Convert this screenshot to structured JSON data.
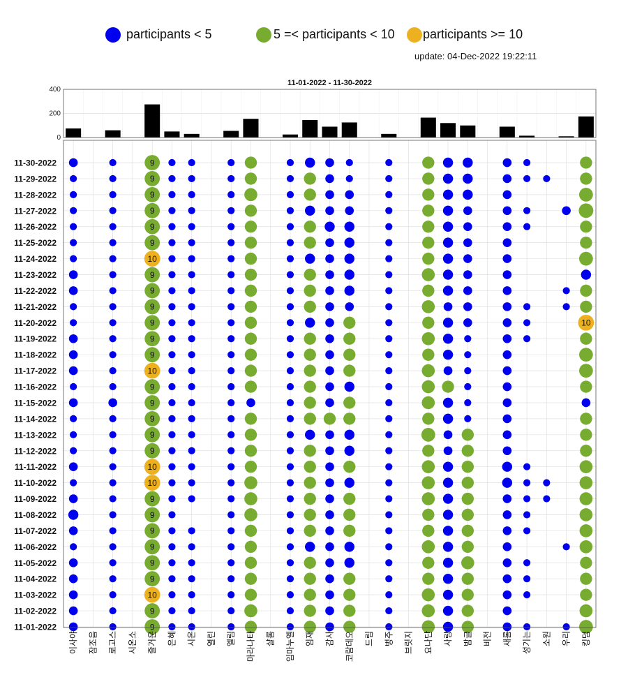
{
  "legend": {
    "items": [
      {
        "label": "participants < 5",
        "color": "#0000ee"
      },
      {
        "label": "5 =< participants < 10",
        "color": "#77ac30"
      },
      {
        "label": "participants >= 10",
        "color": "#edb120"
      }
    ],
    "update": "update: 04-Dec-2022 19:22:11"
  },
  "chart_data": [
    {
      "type": "bar",
      "title": "11-01-2022  - 11-30-2022",
      "ylim": [
        0,
        400
      ],
      "yticks": [
        0,
        200,
        400
      ],
      "categories": [
        "이사야",
        "잠조음",
        "로고스",
        "시온소",
        "즐거운",
        "은혜",
        "시온",
        "열린",
        "엘림",
        "마라나타",
        "샬롬",
        "임마누엘",
        "임재",
        "감사",
        "코람데오",
        "드림",
        "벙주",
        "브릿지",
        "요나단",
        "사랑",
        "밤글",
        "비전",
        "새롬",
        "성기는",
        "소원",
        "우리",
        "킹덤"
      ],
      "values": [
        75,
        0,
        60,
        0,
        275,
        50,
        30,
        0,
        55,
        155,
        0,
        25,
        145,
        90,
        125,
        0,
        30,
        0,
        165,
        120,
        100,
        0,
        90,
        15,
        0,
        10,
        175
      ],
      "color": "#000000"
    },
    {
      "type": "scatter",
      "dates": [
        "11-30-2022",
        "11-29-2022",
        "11-28-2022",
        "11-27-2022",
        "11-26-2022",
        "11-25-2022",
        "11-24-2022",
        "11-23-2022",
        "11-22-2022",
        "11-21-2022",
        "11-20-2022",
        "11-19-2022",
        "11-18-2022",
        "11-17-2022",
        "11-16-2022",
        "11-15-2022",
        "11-14-2022",
        "11-13-2022",
        "11-12-2022",
        "11-11-2022",
        "11-10-2022",
        "11-09-2022",
        "11-08-2022",
        "11-07-2022",
        "11-06-2022",
        "11-05-2022",
        "11-04-2022",
        "11-03-2022",
        "11-02-2022",
        "11-01-2022"
      ],
      "thresholds": {
        "low": 5,
        "high": 10
      },
      "colors": {
        "low": "#0000ee",
        "mid": "#77ac30",
        "high": "#edb120"
      },
      "values": {
        "이사야": [
          2,
          1,
          1,
          1,
          1,
          1,
          1,
          2,
          2,
          1,
          1,
          2,
          2,
          2,
          1,
          2,
          1,
          1,
          1,
          2,
          1,
          2,
          3,
          2,
          1,
          2,
          2,
          2,
          2,
          2
        ],
        "잠조음": [
          0,
          0,
          0,
          0,
          0,
          0,
          0,
          0,
          0,
          0,
          0,
          0,
          0,
          0,
          0,
          0,
          0,
          0,
          0,
          0,
          0,
          0,
          0,
          0,
          0,
          0,
          0,
          0,
          0,
          0
        ],
        "로고스": [
          1,
          1,
          1,
          1,
          1,
          1,
          1,
          1,
          1,
          1,
          1,
          1,
          1,
          1,
          1,
          2,
          1,
          1,
          1,
          1,
          1,
          1,
          1,
          1,
          1,
          1,
          1,
          1,
          1,
          1
        ],
        "시온소": [
          0,
          0,
          0,
          0,
          0,
          0,
          0,
          0,
          0,
          0,
          0,
          0,
          0,
          0,
          0,
          0,
          0,
          0,
          0,
          0,
          0,
          0,
          0,
          0,
          0,
          0,
          0,
          0,
          0,
          0
        ],
        "즐거운": [
          9,
          9,
          9,
          9,
          9,
          9,
          10,
          9,
          9,
          9,
          9,
          9,
          9,
          10,
          9,
          9,
          9,
          9,
          9,
          10,
          10,
          9,
          9,
          9,
          9,
          9,
          9,
          10,
          9,
          9
        ],
        "은혜": [
          1,
          1,
          1,
          1,
          1,
          1,
          1,
          1,
          1,
          1,
          1,
          1,
          1,
          1,
          1,
          1,
          1,
          1,
          1,
          1,
          1,
          1,
          1,
          1,
          1,
          1,
          1,
          1,
          1,
          1
        ],
        "시온": [
          1,
          1,
          1,
          1,
          1,
          1,
          1,
          1,
          1,
          1,
          1,
          1,
          1,
          1,
          1,
          1,
          1,
          1,
          1,
          1,
          1,
          1,
          0,
          1,
          1,
          1,
          1,
          1,
          1,
          1
        ],
        "열린": [
          0,
          0,
          0,
          0,
          0,
          0,
          0,
          0,
          0,
          0,
          0,
          0,
          0,
          0,
          0,
          0,
          0,
          0,
          0,
          0,
          0,
          0,
          0,
          0,
          0,
          0,
          0,
          0,
          0,
          0
        ],
        "엘림": [
          1,
          1,
          1,
          1,
          1,
          1,
          1,
          1,
          1,
          1,
          1,
          1,
          1,
          1,
          1,
          1,
          1,
          1,
          1,
          1,
          1,
          1,
          1,
          1,
          1,
          1,
          1,
          1,
          1,
          1
        ],
        "마라나타": [
          5,
          5,
          6,
          5,
          5,
          5,
          5,
          5,
          5,
          5,
          5,
          5,
          5,
          5,
          5,
          2,
          5,
          5,
          5,
          5,
          6,
          6,
          6,
          5,
          5,
          5,
          5,
          5,
          6,
          5
        ],
        "샬롬": [
          0,
          0,
          0,
          0,
          0,
          0,
          0,
          0,
          0,
          0,
          0,
          0,
          0,
          0,
          0,
          0,
          0,
          0,
          0,
          0,
          0,
          0,
          0,
          0,
          0,
          0,
          0,
          0,
          0,
          0
        ],
        "임마누엘": [
          1,
          1,
          1,
          1,
          1,
          1,
          1,
          1,
          1,
          1,
          1,
          1,
          1,
          1,
          1,
          1,
          1,
          1,
          1,
          1,
          1,
          1,
          1,
          1,
          1,
          1,
          1,
          1,
          1,
          1
        ],
        "임재": [
          3,
          5,
          5,
          3,
          5,
          5,
          3,
          5,
          5,
          5,
          3,
          5,
          5,
          5,
          5,
          5,
          5,
          3,
          5,
          5,
          5,
          5,
          5,
          5,
          3,
          5,
          5,
          5,
          5,
          5
        ],
        "감사": [
          2,
          2,
          2,
          2,
          3,
          2,
          2,
          2,
          2,
          2,
          2,
          2,
          2,
          2,
          2,
          2,
          5,
          2,
          2,
          2,
          2,
          2,
          2,
          2,
          2,
          2,
          2,
          2,
          2,
          2
        ],
        "코람데오": [
          1,
          1,
          2,
          2,
          3,
          3,
          3,
          3,
          3,
          2,
          5,
          5,
          5,
          5,
          3,
          5,
          5,
          3,
          3,
          5,
          3,
          5,
          5,
          5,
          3,
          3,
          5,
          5,
          5,
          5
        ],
        "드림": [
          0,
          0,
          0,
          0,
          0,
          0,
          0,
          0,
          0,
          0,
          0,
          0,
          0,
          0,
          0,
          0,
          0,
          0,
          0,
          0,
          0,
          0,
          0,
          0,
          0,
          0,
          0,
          0,
          0,
          0
        ],
        "벙주": [
          1,
          1,
          1,
          1,
          1,
          1,
          1,
          1,
          1,
          1,
          1,
          1,
          1,
          1,
          1,
          1,
          1,
          1,
          1,
          1,
          1,
          1,
          1,
          1,
          1,
          1,
          1,
          1,
          1,
          1
        ],
        "브릿지": [
          0,
          0,
          0,
          0,
          0,
          0,
          0,
          0,
          0,
          0,
          0,
          0,
          0,
          0,
          0,
          0,
          0,
          0,
          0,
          0,
          0,
          0,
          0,
          0,
          0,
          0,
          0,
          0,
          0,
          0
        ],
        "요나단": [
          5,
          5,
          5,
          5,
          5,
          5,
          5,
          6,
          5,
          6,
          5,
          6,
          5,
          6,
          6,
          6,
          5,
          7,
          5,
          6,
          6,
          6,
          5,
          5,
          6,
          5,
          5,
          6,
          6,
          6
        ],
        "사랑": [
          3,
          3,
          3,
          3,
          3,
          3,
          3,
          3,
          3,
          2,
          3,
          3,
          3,
          2,
          5,
          3,
          3,
          2,
          2,
          3,
          3,
          3,
          3,
          3,
          3,
          3,
          3,
          3,
          3,
          3
        ],
        "밤글": [
          3,
          3,
          3,
          2,
          2,
          2,
          2,
          2,
          2,
          2,
          2,
          1,
          1,
          1,
          1,
          1,
          1,
          5,
          5,
          5,
          5,
          5,
          5,
          5,
          5,
          6,
          5,
          5,
          5,
          5
        ],
        "비전": [
          0,
          0,
          0,
          0,
          0,
          0,
          0,
          0,
          0,
          0,
          0,
          0,
          0,
          0,
          0,
          0,
          0,
          0,
          0,
          0,
          0,
          0,
          0,
          0,
          0,
          0,
          0,
          0,
          0,
          0
        ],
        "새롬": [
          2,
          2,
          2,
          2,
          2,
          2,
          2,
          2,
          2,
          2,
          2,
          2,
          2,
          2,
          2,
          2,
          2,
          2,
          2,
          3,
          3,
          2,
          2,
          2,
          2,
          2,
          2,
          2,
          2,
          2
        ],
        "성기는": [
          1,
          1,
          0,
          1,
          1,
          0,
          0,
          0,
          0,
          1,
          1,
          1,
          0,
          0,
          0,
          0,
          0,
          0,
          0,
          1,
          1,
          1,
          1,
          1,
          0,
          1,
          1,
          1,
          0,
          1
        ],
        "소원": [
          0,
          1,
          0,
          0,
          0,
          0,
          0,
          0,
          0,
          0,
          0,
          0,
          0,
          0,
          0,
          0,
          0,
          0,
          0,
          0,
          1,
          1,
          0,
          0,
          0,
          0,
          0,
          0,
          0,
          0
        ],
        "우리": [
          0,
          0,
          0,
          2,
          0,
          0,
          0,
          0,
          1,
          1,
          0,
          0,
          0,
          0,
          0,
          0,
          0,
          0,
          0,
          0,
          0,
          0,
          0,
          0,
          1,
          0,
          0,
          0,
          0,
          1
        ],
        "킹덤": [
          5,
          5,
          7,
          8,
          5,
          5,
          7,
          3,
          5,
          5,
          10,
          5,
          7,
          7,
          5,
          2,
          5,
          5,
          5,
          6,
          6,
          6,
          6,
          6,
          6,
          5,
          5,
          5,
          6,
          7
        ]
      },
      "label_values": [
        9,
        10
      ]
    }
  ]
}
